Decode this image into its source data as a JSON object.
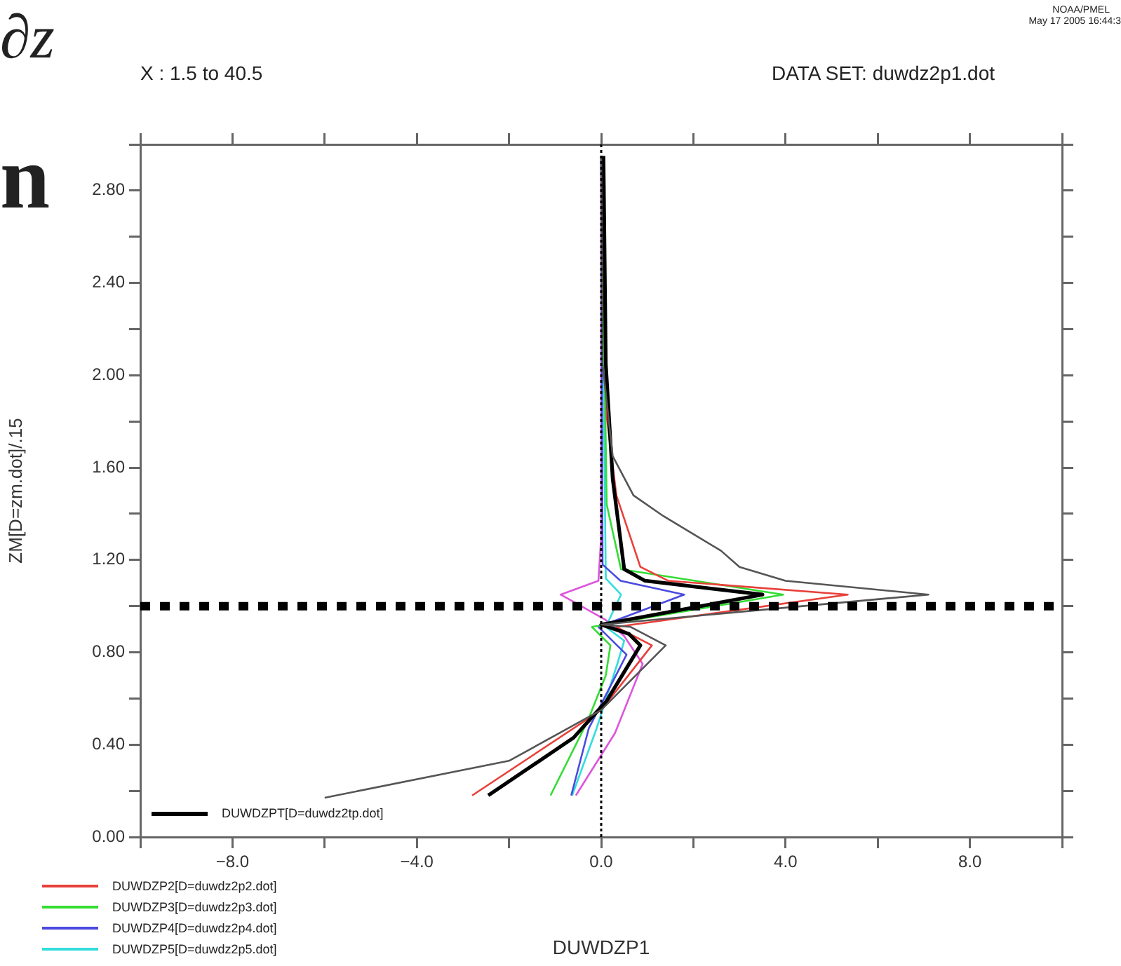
{
  "chart_data": {
    "type": "line",
    "xlabel": "DUWDZP1",
    "ylabel": "ZM[D=zm.dot]/.15",
    "annotations": [
      "∂z",
      "n",
      "X : 1.5 to 40.5",
      "DATA SET: duwdz2p1.dot",
      "NOAA/PMEL",
      "May 17 2005 16:44:3"
    ],
    "xlim": [
      -10,
      10
    ],
    "xticks": [
      {
        "value": -10,
        "label": null
      },
      {
        "value": -8,
        "label": "−8.0"
      },
      {
        "value": -6,
        "label": null
      },
      {
        "value": -4,
        "label": "−4.0"
      },
      {
        "value": -2,
        "label": null
      },
      {
        "value": 0,
        "label": "0.0"
      },
      {
        "value": 2,
        "label": null
      },
      {
        "value": 4,
        "label": "4.0"
      },
      {
        "value": 6,
        "label": null
      },
      {
        "value": 8,
        "label": "8.0"
      },
      {
        "value": 10,
        "label": null
      }
    ],
    "ylim": [
      0,
      3
    ],
    "yticks": [
      {
        "value": 0,
        "label": "0.00"
      },
      {
        "value": 0.2,
        "label": null
      },
      {
        "value": 0.4,
        "label": "0.40"
      },
      {
        "value": 0.6,
        "label": null
      },
      {
        "value": 0.8,
        "label": "0.80"
      },
      {
        "value": 1,
        "label": null
      },
      {
        "value": 1.2,
        "label": "1.20"
      },
      {
        "value": 1.4,
        "label": null
      },
      {
        "value": 1.6,
        "label": "1.60"
      },
      {
        "value": 1.8,
        "label": null
      },
      {
        "value": 2,
        "label": "2.00"
      },
      {
        "value": 2.2,
        "label": null
      },
      {
        "value": 2.4,
        "label": "2.40"
      },
      {
        "value": 2.6,
        "label": null
      },
      {
        "value": 2.8,
        "label": "2.80"
      },
      {
        "value": 3,
        "label": null
      }
    ],
    "grid": false,
    "legend": "bottom left",
    "marker": "none",
    "line_style": "solid",
    "ref_lines": [
      {
        "axis": "x",
        "value": 0,
        "color": "#000000",
        "line_style": "dotted"
      },
      {
        "axis": "y",
        "value": 1.0,
        "color": "#000000",
        "line_style": "dotted"
      }
    ],
    "series": [
      {
        "color": "#555555",
        "x": [
          -6.0,
          -2.0,
          0.0,
          1.4,
          0.64,
          0.0,
          7.1,
          4.0,
          3.0,
          2.6,
          1.35,
          0.7,
          0.25,
          0.03,
          0.0
        ],
        "values": [
          0.17,
          0.33,
          0.55,
          0.83,
          0.91,
          0.92,
          1.05,
          1.11,
          1.17,
          1.24,
          1.39,
          1.48,
          1.65,
          2.05,
          2.95
        ]
      },
      {
        "name": "DUWDZPT[D=duwdz2tp.dot]",
        "color": "#000000",
        "x": [
          -2.45,
          -0.6,
          0.12,
          0.85,
          0.6,
          0.0,
          3.5,
          0.95,
          0.5,
          0.25,
          0.1,
          0.05
        ],
        "values": [
          0.18,
          0.43,
          0.59,
          0.83,
          0.88,
          0.92,
          1.05,
          1.11,
          1.16,
          1.55,
          2.05,
          2.95
        ]
      },
      {
        "name": "DUWDZP2[D=duwdz2p2.dot]",
        "color": "#e8403a",
        "x": [
          -2.8,
          0.0,
          1.1,
          0.33,
          5.35,
          1.45,
          0.85,
          0.33,
          0.12,
          0.02
        ],
        "values": [
          0.18,
          0.55,
          0.83,
          0.91,
          1.05,
          1.11,
          1.17,
          1.48,
          1.82,
          2.95
        ]
      },
      {
        "name": "DUWDZP3[D=duwdz2p3.dot]",
        "color": "#33dd33",
        "x": [
          -1.1,
          -0.3,
          0.1,
          0.2,
          -0.2,
          3.95,
          0.43,
          0.12,
          0.0
        ],
        "values": [
          0.18,
          0.5,
          0.7,
          0.83,
          0.91,
          1.05,
          1.16,
          1.44,
          2.95
        ]
      },
      {
        "name": "DUWDZP4[D=duwdz2p4.dot]",
        "color": "#4a4adf",
        "x": [
          -0.65,
          -0.27,
          0.55,
          -0.06,
          1.8,
          0.42,
          0.03,
          0.0
        ],
        "values": [
          0.18,
          0.47,
          0.79,
          0.91,
          1.05,
          1.11,
          1.18,
          2.95
        ]
      },
      {
        "name": "DUWDZP5[D=duwdz2p5.dot]",
        "color": "#33dddd",
        "x": [
          -0.63,
          -0.1,
          0.35,
          0.5,
          0.1,
          0.43,
          0.1,
          0.0
        ],
        "values": [
          0.18,
          0.47,
          0.75,
          0.85,
          0.91,
          1.05,
          1.12,
          2.95
        ]
      },
      {
        "color": "#dd55dd",
        "x": [
          -0.55,
          0.3,
          0.9,
          0.5,
          0.1,
          -0.88,
          -0.06,
          0.0,
          0.0
        ],
        "values": [
          0.18,
          0.45,
          0.75,
          0.87,
          0.94,
          1.05,
          1.11,
          1.3,
          2.95
        ]
      }
    ]
  }
}
